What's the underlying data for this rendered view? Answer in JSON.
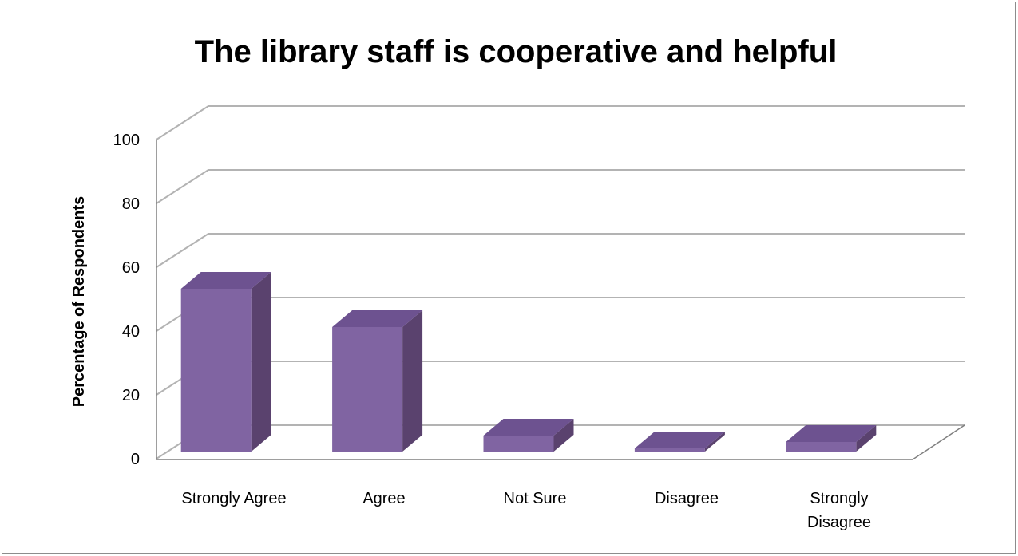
{
  "chart_data": {
    "type": "bar",
    "title": "The library staff is cooperative and helpful",
    "xlabel": "",
    "ylabel": "Percentage of Respondents",
    "categories": [
      "Strongly Agree",
      "Agree",
      "Not Sure",
      "Disagree",
      "Strongly Disagree"
    ],
    "category_lines": [
      [
        "Strongly Agree"
      ],
      [
        "Agree"
      ],
      [
        "Not Sure"
      ],
      [
        "Disagree"
      ],
      [
        "Strongly",
        "Disagree"
      ]
    ],
    "values": [
      51,
      39,
      5,
      1,
      3
    ],
    "ylim": [
      0,
      100
    ],
    "yticks": [
      "0",
      "20",
      "40",
      "60",
      "80",
      "100"
    ],
    "grid": true,
    "style": "3d-column",
    "colors": {
      "bar_front": "#8064a2",
      "bar_side": "#5a426e",
      "bar_top": "#6d5290",
      "gridline": "#b3b3b3",
      "wall_edge": "#7f7f7f"
    }
  }
}
